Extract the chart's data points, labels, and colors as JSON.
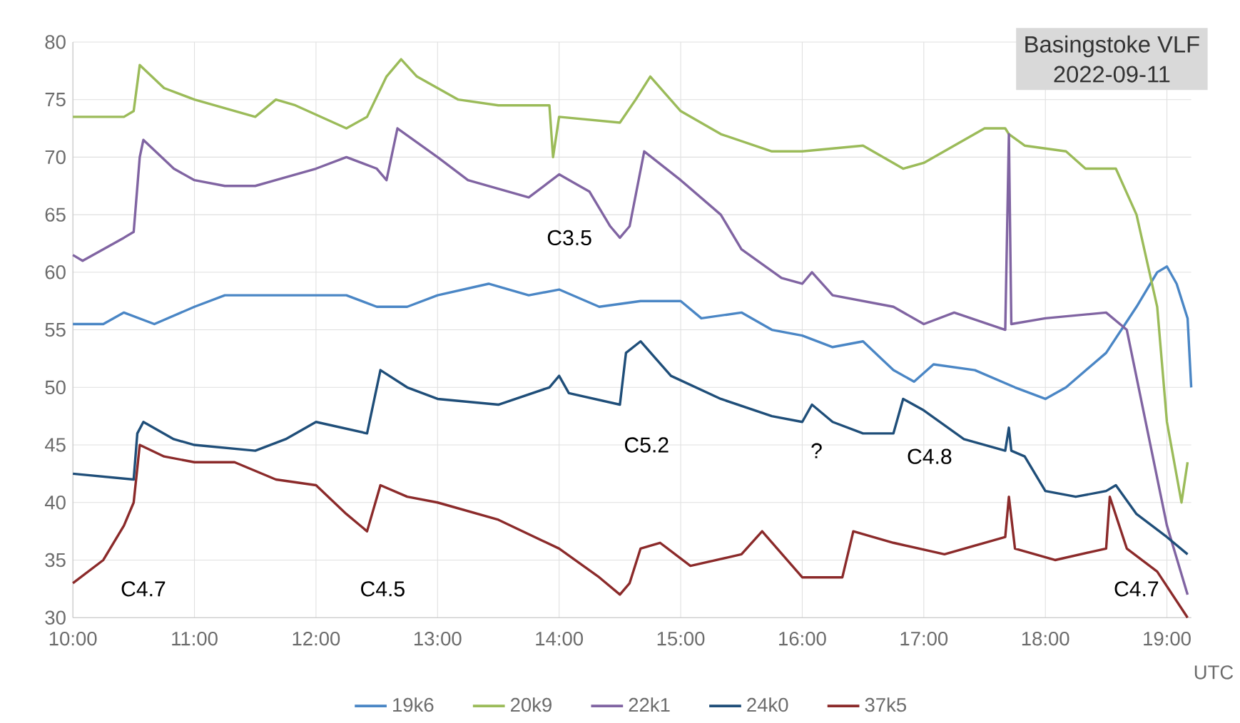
{
  "chart_data": {
    "type": "line",
    "title": "Basingstoke VLF",
    "subtitle": "2022-09-11",
    "xlabel": "UTC",
    "xlim": [
      10,
      19.2
    ],
    "ylim": [
      30,
      80
    ],
    "xticks": [
      {
        "value": 10,
        "label": "10:00"
      },
      {
        "value": 11,
        "label": "11:00"
      },
      {
        "value": 12,
        "label": "12:00"
      },
      {
        "value": 13,
        "label": "13:00"
      },
      {
        "value": 14,
        "label": "14:00"
      },
      {
        "value": 15,
        "label": "15:00"
      },
      {
        "value": 16,
        "label": "16:00"
      },
      {
        "value": 17,
        "label": "17:00"
      },
      {
        "value": 18,
        "label": "18:00"
      },
      {
        "value": 19,
        "label": "19:00"
      }
    ],
    "yticks": [
      30,
      35,
      40,
      45,
      50,
      55,
      60,
      65,
      70,
      75,
      80
    ],
    "grid": true,
    "legend": "bottom",
    "marker": "none",
    "line_style": "solid",
    "series": [
      {
        "name": "19k6",
        "color": "#4a86c5",
        "x": [
          10,
          10.25,
          10.42,
          10.67,
          11,
          11.25,
          11.75,
          12.25,
          12.5,
          12.75,
          13,
          13.42,
          13.75,
          14,
          14.33,
          14.67,
          15,
          15.17,
          15.5,
          15.75,
          16,
          16.25,
          16.5,
          16.75,
          16.92,
          17.08,
          17.42,
          17.75,
          18,
          18.17,
          18.5,
          18.75,
          18.92,
          19,
          19.08,
          19.17,
          19.2
        ],
        "values": [
          55.5,
          55.5,
          56.5,
          55.5,
          57,
          58,
          58,
          58,
          57,
          57,
          58,
          59,
          58,
          58.5,
          57,
          57.5,
          57.5,
          56,
          56.5,
          55,
          54.5,
          53.5,
          54,
          51.5,
          50.5,
          52,
          51.5,
          50,
          49,
          50,
          53,
          57,
          60,
          60.5,
          59,
          56,
          50
        ]
      },
      {
        "name": "20k9",
        "color": "#9bbb59",
        "x": [
          10,
          10.42,
          10.5,
          10.55,
          10.75,
          11,
          11.5,
          11.67,
          11.83,
          12.25,
          12.42,
          12.58,
          12.7,
          12.83,
          13.17,
          13.5,
          13.92,
          13.95,
          14,
          14.5,
          14.63,
          14.75,
          15,
          15.33,
          15.75,
          16,
          16.5,
          16.83,
          17,
          17.5,
          17.67,
          17.7,
          17.83,
          18.17,
          18.33,
          18.58,
          18.75,
          18.92,
          19,
          19.12,
          19.17
        ],
        "values": [
          73.5,
          73.5,
          74,
          78,
          76,
          75,
          73.5,
          75,
          74.5,
          72.5,
          73.5,
          77,
          78.5,
          77,
          75,
          74.5,
          74.5,
          70,
          73.5,
          73,
          75,
          77,
          74,
          72,
          70.5,
          70.5,
          71,
          69,
          69.5,
          72.5,
          72.5,
          72,
          71,
          70.5,
          69,
          69,
          65,
          57,
          47,
          40,
          43.5
        ]
      },
      {
        "name": "22k1",
        "color": "#8064a2",
        "x": [
          10,
          10.08,
          10.42,
          10.5,
          10.55,
          10.58,
          10.83,
          11,
          11.25,
          11.5,
          12,
          12.25,
          12.5,
          12.58,
          12.67,
          13,
          13.25,
          13.75,
          14,
          14.25,
          14.42,
          14.5,
          14.58,
          14.7,
          15,
          15.33,
          15.5,
          15.83,
          16,
          16.08,
          16.25,
          16.75,
          17,
          17.25,
          17.67,
          17.7,
          17.72,
          18,
          18.5,
          18.67,
          19,
          19.17
        ],
        "values": [
          61.5,
          61,
          63,
          63.5,
          70,
          71.5,
          69,
          68,
          67.5,
          67.5,
          69,
          70,
          69,
          68,
          72.5,
          70,
          68,
          66.5,
          68.5,
          67,
          64,
          63,
          64,
          70.5,
          68,
          65,
          62,
          59.5,
          59,
          60,
          58,
          57,
          55.5,
          56.5,
          55,
          72,
          55.5,
          56,
          56.5,
          55,
          38,
          32
        ]
      },
      {
        "name": "24k0",
        "color": "#1f4e79",
        "x": [
          10,
          10.5,
          10.53,
          10.58,
          10.83,
          11,
          11.5,
          11.75,
          12,
          12.42,
          12.53,
          12.75,
          13,
          13.5,
          13.92,
          14,
          14.08,
          14.5,
          14.55,
          14.67,
          14.92,
          15.33,
          15.75,
          16,
          16.08,
          16.25,
          16.5,
          16.75,
          16.83,
          17,
          17.33,
          17.67,
          17.7,
          17.72,
          17.83,
          18,
          18.25,
          18.5,
          18.58,
          18.75,
          19,
          19.17
        ],
        "values": [
          42.5,
          42,
          46,
          47,
          45.5,
          45,
          44.5,
          45.5,
          47,
          46,
          51.5,
          50,
          49,
          48.5,
          50,
          51,
          49.5,
          48.5,
          53,
          54,
          51,
          49,
          47.5,
          47,
          48.5,
          47,
          46,
          46,
          49,
          48,
          45.5,
          44.5,
          46.5,
          44.5,
          44,
          41,
          40.5,
          41,
          41.5,
          39,
          37,
          35.5
        ]
      },
      {
        "name": "37k5",
        "color": "#8b2a2a",
        "x": [
          10,
          10.25,
          10.42,
          10.5,
          10.55,
          10.75,
          11,
          11.33,
          11.67,
          12,
          12.25,
          12.42,
          12.53,
          12.75,
          13,
          13.5,
          14,
          14.33,
          14.5,
          14.58,
          14.67,
          14.83,
          15.08,
          15.5,
          15.67,
          16,
          16.33,
          16.42,
          16.75,
          17.17,
          17.5,
          17.67,
          17.7,
          17.75,
          18.08,
          18.5,
          18.53,
          18.67,
          18.92,
          19.17
        ],
        "values": [
          33,
          35,
          38,
          40,
          45,
          44,
          43.5,
          43.5,
          42,
          41.5,
          39,
          37.5,
          41.5,
          40.5,
          40,
          38.5,
          36,
          33.5,
          32,
          33,
          36,
          36.5,
          34.5,
          35.5,
          37.5,
          33.5,
          33.5,
          37.5,
          36.5,
          35.5,
          36.5,
          37,
          40.5,
          36,
          35,
          36,
          40.5,
          36,
          34,
          30
        ]
      }
    ],
    "annotations": [
      "C4.7",
      "C4.5",
      "C3.5",
      "C5.2",
      "?",
      "C4.8",
      "C4.7"
    ]
  }
}
